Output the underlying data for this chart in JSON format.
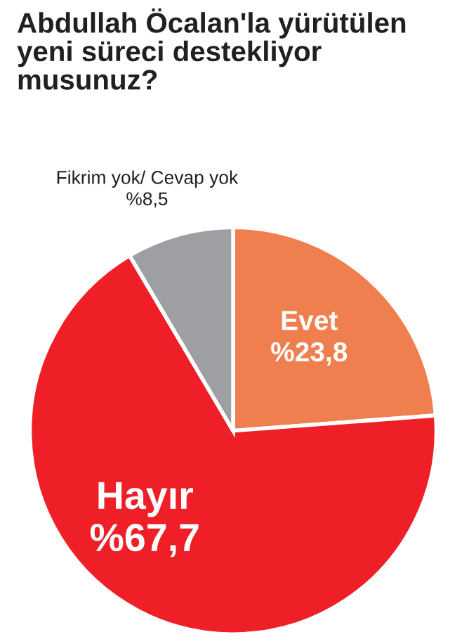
{
  "chart_data": {
    "type": "pie",
    "title": "Abdullah Öcalan'la yürütülen yeni süreci destekliyor musunuz?",
    "categories": [
      "Evet",
      "Hayır",
      "Fikrim yok/ Cevap yok"
    ],
    "values": [
      23.8,
      67.7,
      8.5
    ],
    "value_labels": [
      "%23,8",
      "%67,7",
      "%8,5"
    ],
    "colors": [
      "#f07f4f",
      "#ee1f27",
      "#9d9fa2"
    ]
  }
}
